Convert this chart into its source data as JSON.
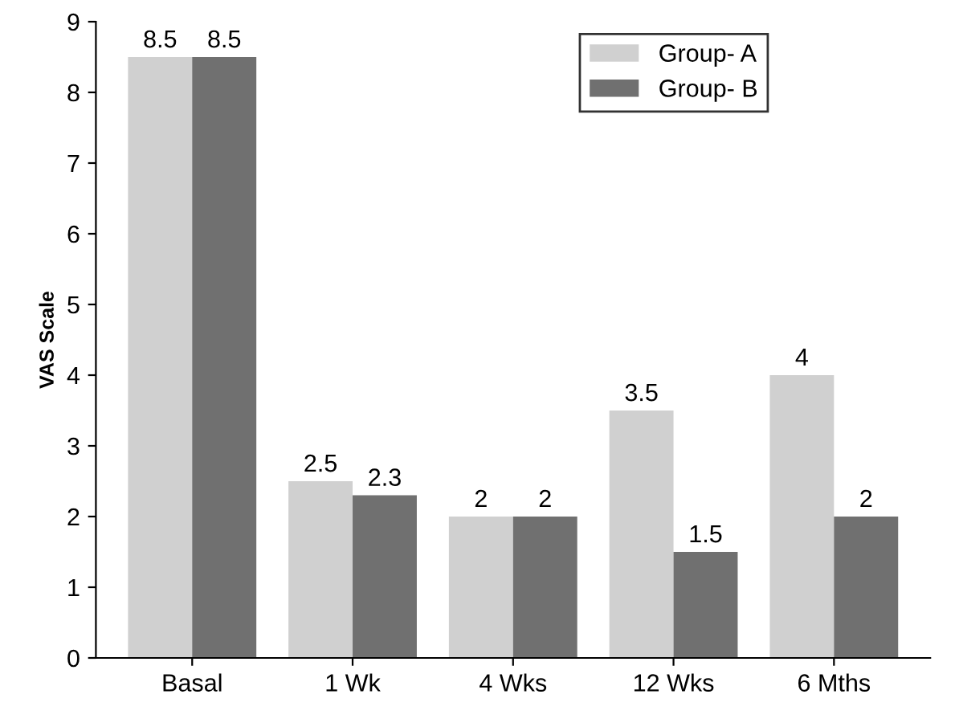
{
  "chart_data": {
    "type": "bar",
    "ylabel": "VAS Scale",
    "categories": [
      "Basal",
      "1 Wk",
      "4 Wks",
      "12 Wks",
      "6 Mths"
    ],
    "series": [
      {
        "name": "Group- A",
        "color": "#d0d0d0",
        "values": [
          8.5,
          2.5,
          2,
          3.5,
          4
        ]
      },
      {
        "name": "Group- B",
        "color": "#707070",
        "values": [
          8.5,
          2.3,
          2,
          1.5,
          2
        ]
      }
    ],
    "ylim": [
      0,
      9
    ],
    "yticks": [
      0,
      1,
      2,
      3,
      4,
      5,
      6,
      7,
      8,
      9
    ],
    "grid": false,
    "legend": "top right",
    "data_labels": true
  }
}
